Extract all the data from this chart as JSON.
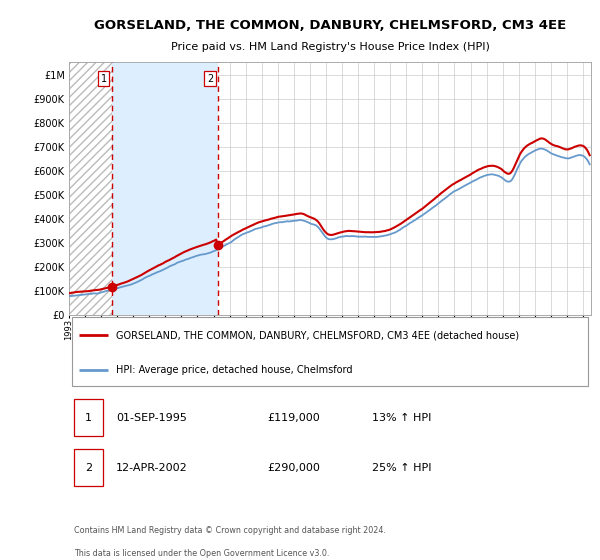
{
  "title": "GORSELAND, THE COMMON, DANBURY, CHELMSFORD, CM3 4EE",
  "subtitle": "Price paid vs. HM Land Registry's House Price Index (HPI)",
  "ytick_values": [
    0,
    100000,
    200000,
    300000,
    400000,
    500000,
    600000,
    700000,
    800000,
    900000,
    1000000
  ],
  "ylim": [
    0,
    1050000
  ],
  "xlim_start": 1993.0,
  "xlim_end": 2025.5,
  "sale1_date": 1995.67,
  "sale1_price": 119000,
  "sale2_date": 2002.28,
  "sale2_price": 290000,
  "vline1_x": 1995.67,
  "vline2_x": 2002.28,
  "shade_xmin": 1995.67,
  "shade_xmax": 2002.28,
  "red_line_color": "#cc0000",
  "blue_line_color": "#6699cc",
  "shade_color": "#ddeeff",
  "grid_color": "#cccccc",
  "vline_color": "#cc0000",
  "legend_label_red": "GORSELAND, THE COMMON, DANBURY, CHELMSFORD, CM3 4EE (detached house)",
  "legend_label_blue": "HPI: Average price, detached house, Chelmsford",
  "table_row1": [
    "1",
    "01-SEP-1995",
    "£119,000",
    "13% ↑ HPI"
  ],
  "table_row2": [
    "2",
    "12-APR-2002",
    "£290,000",
    "25% ↑ HPI"
  ],
  "footer": "Contains HM Land Registry data © Crown copyright and database right 2024.\nThis data is licensed under the Open Government Licence v3.0.",
  "background_color": "#ffffff"
}
